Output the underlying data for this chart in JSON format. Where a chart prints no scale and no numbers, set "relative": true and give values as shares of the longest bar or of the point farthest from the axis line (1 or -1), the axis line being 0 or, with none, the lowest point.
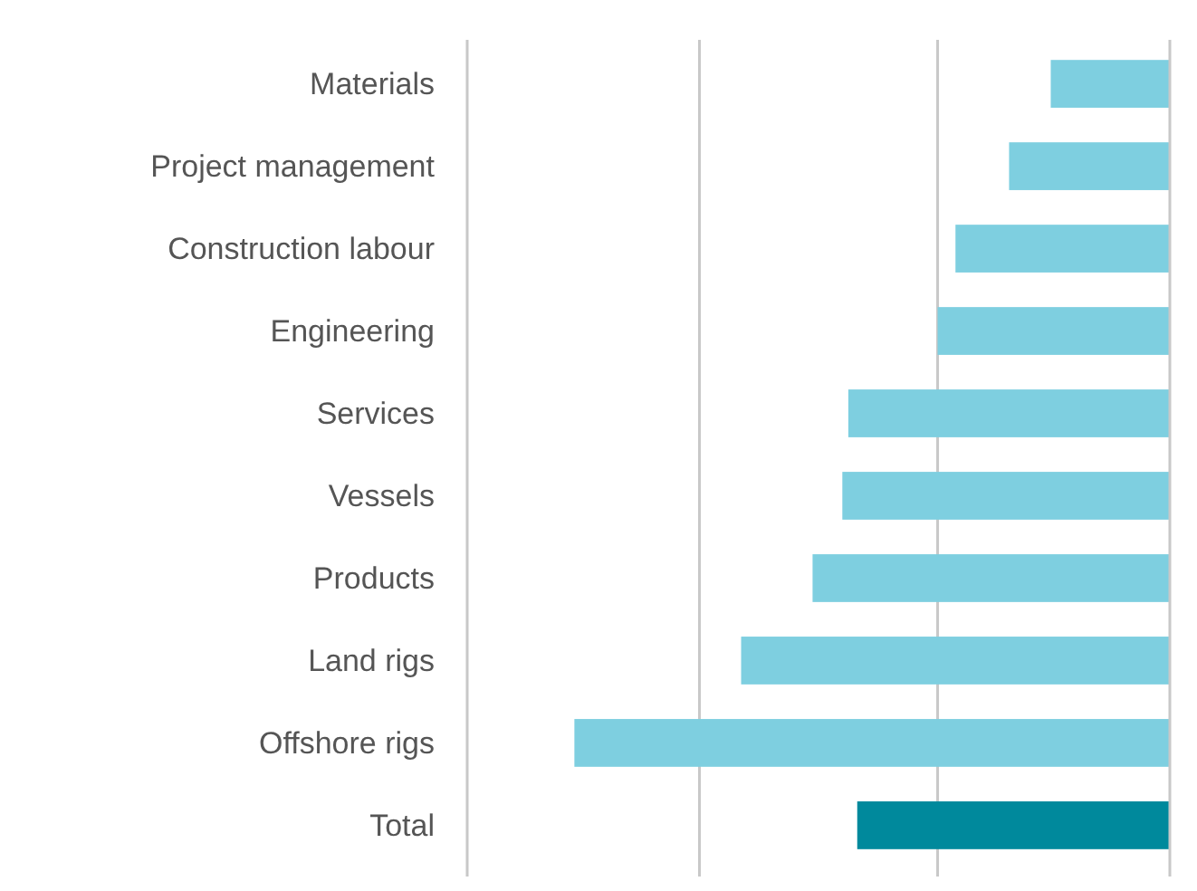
{
  "chart_data": {
    "type": "bar",
    "orientation": "horizontal",
    "relative": true,
    "ref_lines": [
      {
        "axis": "x",
        "value": -1.18,
        "color": "#c8c8c8"
      },
      {
        "axis": "x",
        "value": -0.79,
        "color": "#c8c8c8"
      },
      {
        "axis": "x",
        "value": -0.39,
        "color": "#c8c8c8"
      }
    ],
    "categories": [
      "Materials",
      "Project management",
      "Construction labour",
      "Engineering",
      "Services",
      "Vessels",
      "Products",
      "Land rigs",
      "Offshore rigs",
      "Total"
    ],
    "values": [
      -0.2,
      -0.27,
      -0.36,
      -0.39,
      -0.54,
      -0.55,
      -0.6,
      -0.72,
      -1,
      -0.525
    ],
    "colors": [
      "#7ecfe0",
      "#7ecfe0",
      "#7ecfe0",
      "#7ecfe0",
      "#7ecfe0",
      "#7ecfe0",
      "#7ecfe0",
      "#7ecfe0",
      "#7ecfe0",
      "#00899c"
    ]
  }
}
